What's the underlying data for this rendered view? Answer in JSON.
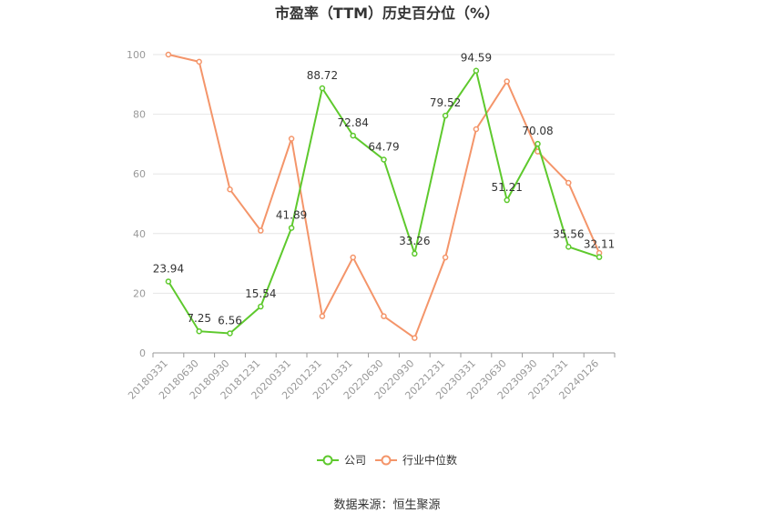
{
  "chart_data": {
    "type": "line",
    "title": "市盈率（TTM）历史百分位（%）",
    "categories": [
      "20180331",
      "20180630",
      "20180930",
      "20181231",
      "20200331",
      "20201231",
      "20210331",
      "20220630",
      "20220930",
      "20221231",
      "20230331",
      "20230630",
      "20230930",
      "20231231",
      "20240126"
    ],
    "ylim": [
      0,
      100
    ],
    "yticks": [
      "0",
      "20",
      "40",
      "60",
      "80",
      "100"
    ],
    "grid": true,
    "legend_position": "bottom-center",
    "series": [
      {
        "name": "公司",
        "color": "#5ec92d",
        "values": [
          23.94,
          7.25,
          6.56,
          15.54,
          41.89,
          88.72,
          72.84,
          64.79,
          33.26,
          79.52,
          94.59,
          51.21,
          70.08,
          35.56,
          32.11
        ],
        "labels": [
          "23.94",
          "7.25",
          "6.56",
          "15.54",
          "41.89",
          "88.72",
          "72.84",
          "64.79",
          "33.26",
          "79.52",
          "94.59",
          "51.21",
          "70.08",
          "35.56",
          "32.11"
        ]
      },
      {
        "name": "行业中位数",
        "color": "#f4956a",
        "values": [
          100,
          97.6,
          54.8,
          41,
          71.8,
          12.3,
          32,
          12.3,
          5,
          32,
          75,
          91,
          67.5,
          57,
          33.5
        ]
      }
    ]
  },
  "footer": {
    "source": "数据来源：恒生聚源"
  }
}
